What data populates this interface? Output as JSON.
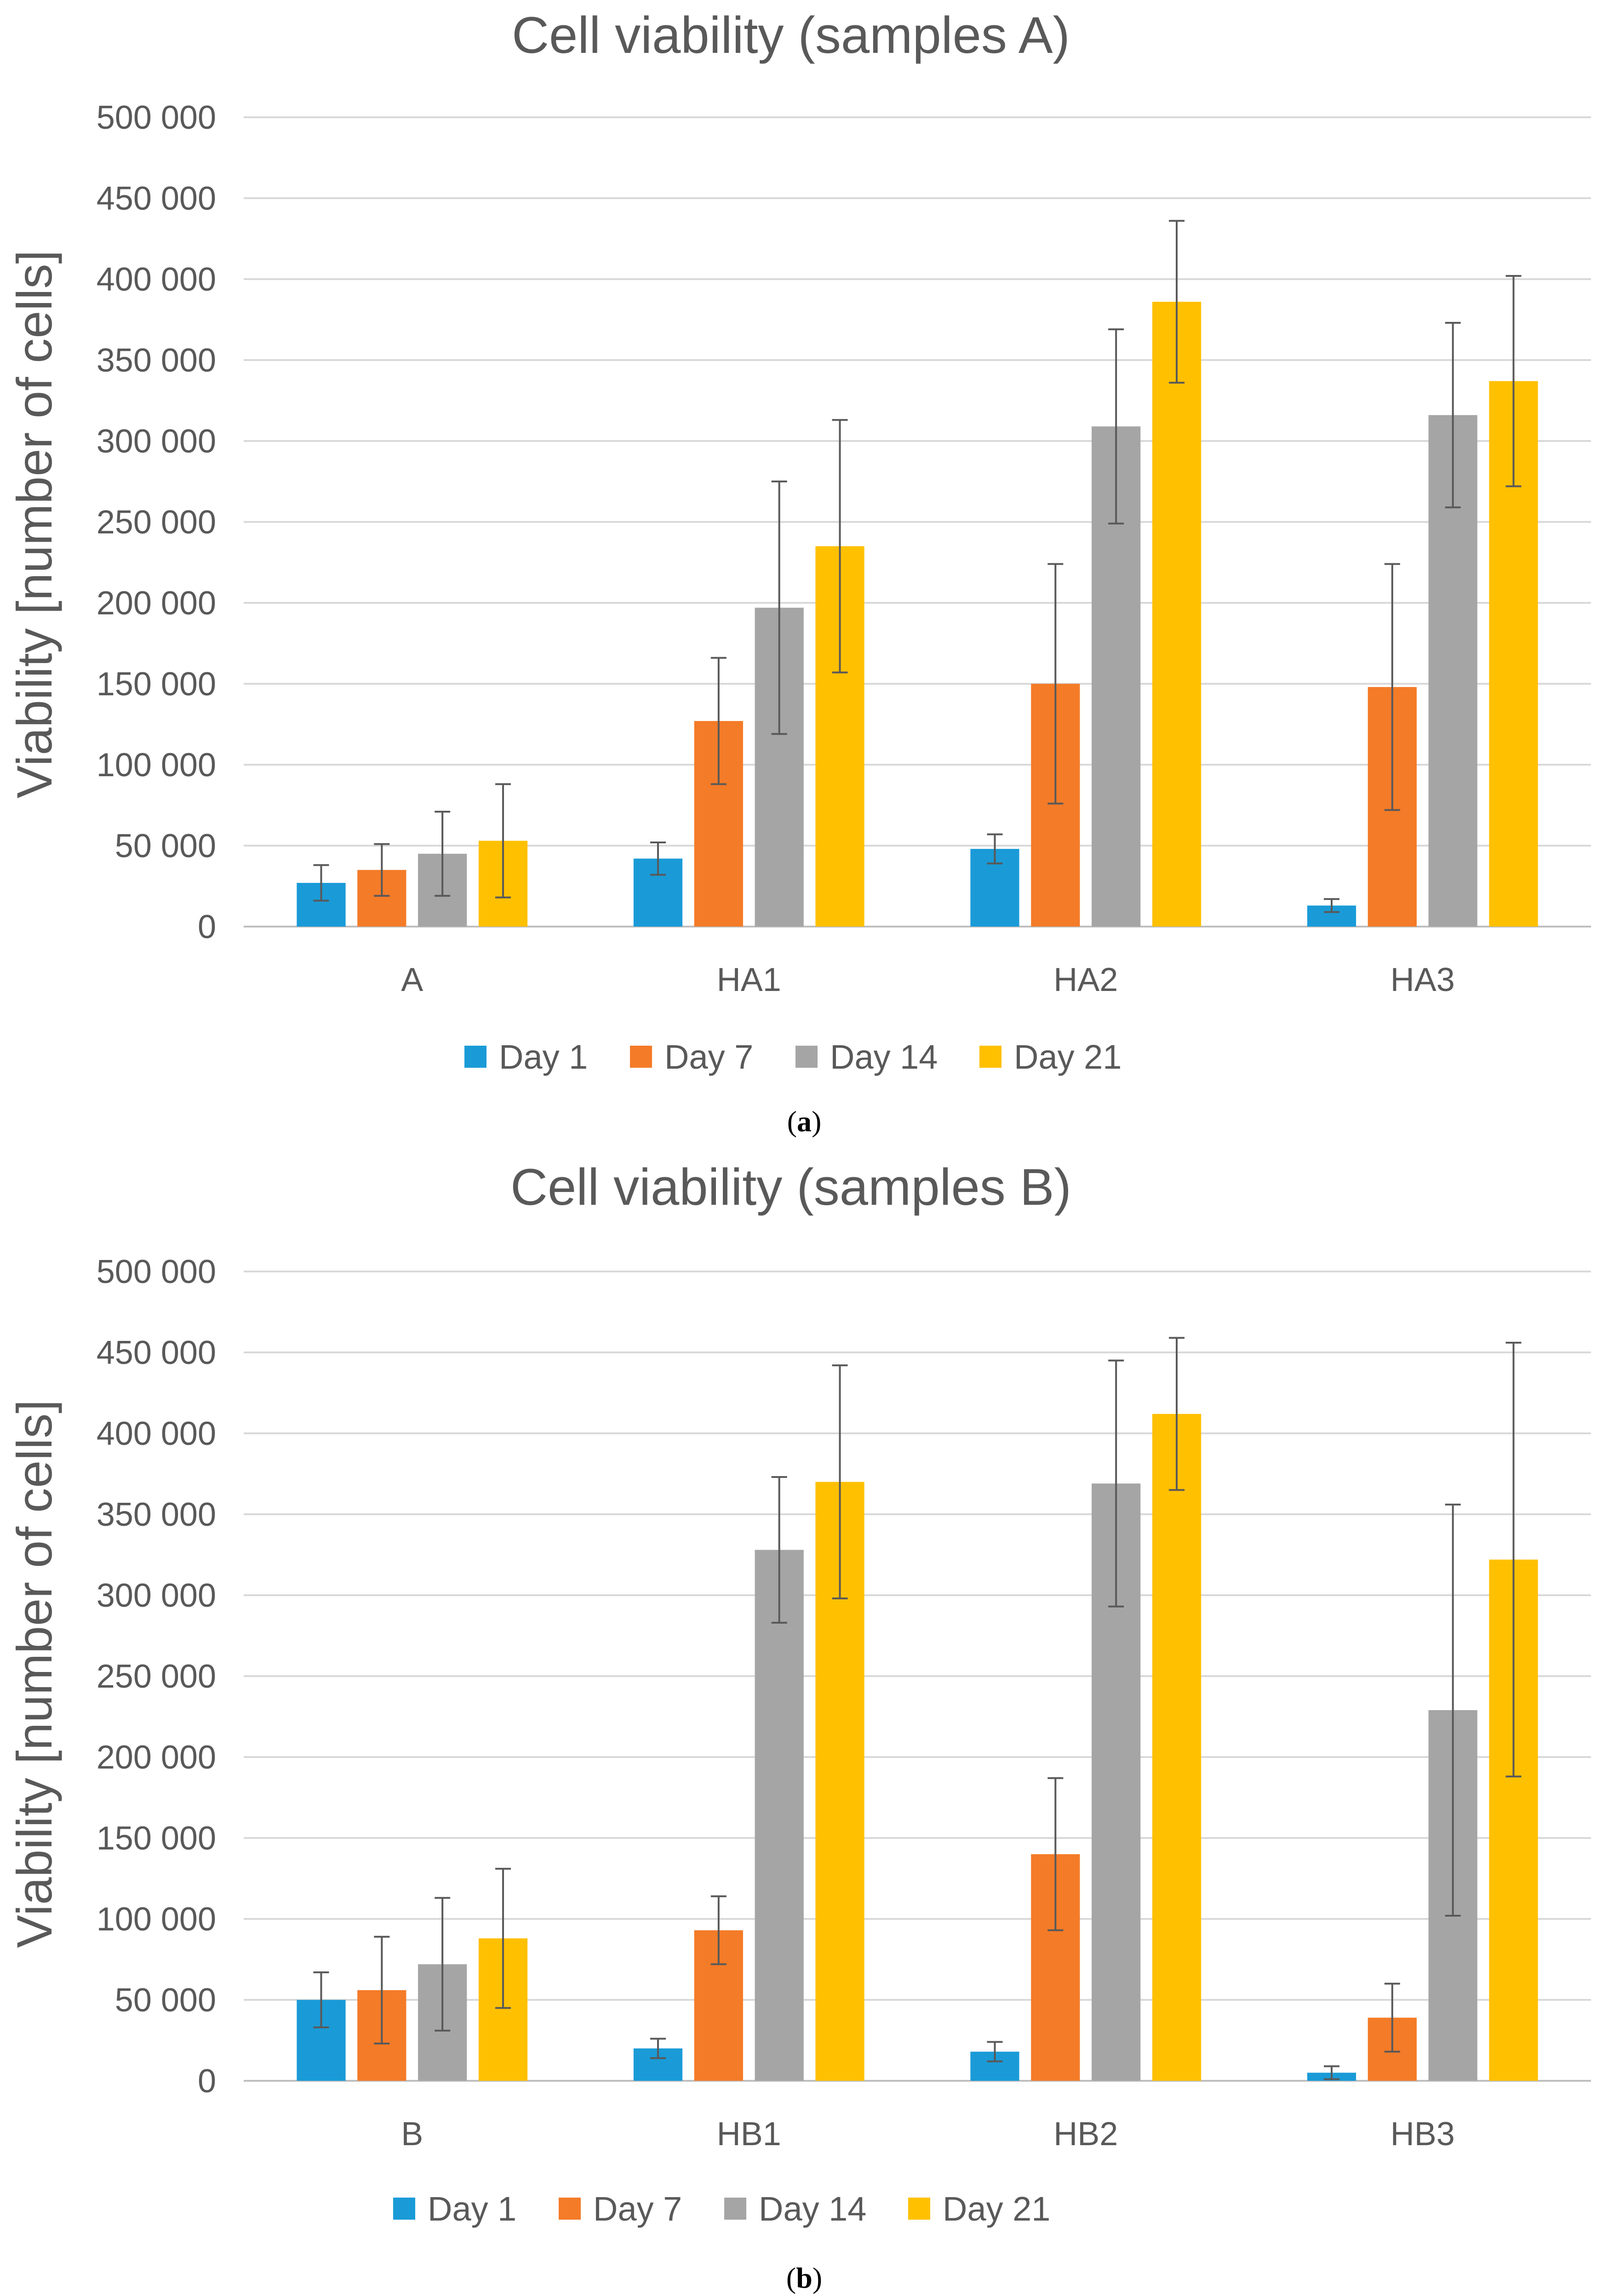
{
  "panels": [
    {
      "caption_letter": "a",
      "chart_data": {
        "type": "bar",
        "title": "Cell viability (samples A)",
        "ylabel": "Viability [number of cells]",
        "xlabel": "",
        "ylim": [
          0,
          500000
        ],
        "yticks": [
          0,
          50000,
          100000,
          150000,
          200000,
          250000,
          300000,
          350000,
          400000,
          450000,
          500000
        ],
        "ytick_labels": [
          "0",
          "50 000",
          "100 000",
          "150 000",
          "200 000",
          "250 000",
          "300 000",
          "350 000",
          "400 000",
          "450 000",
          "500 000"
        ],
        "categories": [
          "A",
          "HA1",
          "HA2",
          "HA3"
        ],
        "grid": true,
        "legend_position": "bottom",
        "series": [
          {
            "name": "Day 1",
            "color": "#1a9bd7",
            "values": [
              27000,
              42000,
              48000,
              13000
            ],
            "errors": [
              11000,
              10000,
              9000,
              4000
            ]
          },
          {
            "name": "Day 7",
            "color": "#f47b28",
            "values": [
              35000,
              127000,
              150000,
              148000
            ],
            "errors": [
              16000,
              39000,
              74000,
              76000
            ]
          },
          {
            "name": "Day 14",
            "color": "#a5a5a5",
            "values": [
              45000,
              197000,
              309000,
              316000
            ],
            "errors": [
              26000,
              78000,
              60000,
              57000
            ]
          },
          {
            "name": "Day 21",
            "color": "#ffc000",
            "values": [
              53000,
              235000,
              386000,
              337000
            ],
            "errors": [
              35000,
              78000,
              50000,
              65000
            ]
          }
        ]
      }
    },
    {
      "caption_letter": "b",
      "chart_data": {
        "type": "bar",
        "title": "Cell viability (samples B)",
        "ylabel": "Viability [number of cells]",
        "xlabel": "",
        "ylim": [
          0,
          500000
        ],
        "yticks": [
          0,
          50000,
          100000,
          150000,
          200000,
          250000,
          300000,
          350000,
          400000,
          450000,
          500000
        ],
        "ytick_labels": [
          "0",
          "50 000",
          "100 000",
          "150 000",
          "200 000",
          "250 000",
          "300 000",
          "350 000",
          "400 000",
          "450 000",
          "500 000"
        ],
        "categories": [
          "B",
          "HB1",
          "HB2",
          "HB3"
        ],
        "grid": true,
        "legend_position": "bottom",
        "series": [
          {
            "name": "Day 1",
            "color": "#1a9bd7",
            "values": [
              50000,
              20000,
              18000,
              5000
            ],
            "errors": [
              17000,
              6000,
              6000,
              4000
            ]
          },
          {
            "name": "Day 7",
            "color": "#f47b28",
            "values": [
              56000,
              93000,
              140000,
              39000
            ],
            "errors": [
              33000,
              21000,
              47000,
              21000
            ]
          },
          {
            "name": "Day 14",
            "color": "#a5a5a5",
            "values": [
              72000,
              328000,
              369000,
              229000
            ],
            "errors": [
              41000,
              45000,
              76000,
              127000
            ]
          },
          {
            "name": "Day 21",
            "color": "#ffc000",
            "values": [
              88000,
              370000,
              412000,
              322000
            ],
            "errors": [
              43000,
              72000,
              47000,
              134000
            ]
          }
        ]
      }
    }
  ]
}
